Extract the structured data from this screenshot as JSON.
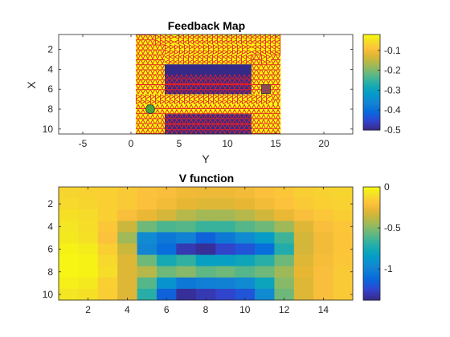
{
  "figure": {
    "background": "#ffffff"
  },
  "colormap": "parula",
  "chart_data": [
    {
      "type": "heatmap",
      "title": "Feedback Map",
      "xlabel": "Y",
      "ylabel": "X",
      "xlim": [
        -7.5,
        23
      ],
      "ylim": [
        0.5,
        10.5
      ],
      "y_reversed": true,
      "xticks": [
        -5,
        0,
        5,
        10,
        15,
        20
      ],
      "yticks": [
        2,
        4,
        6,
        8,
        10
      ],
      "grid_cols": 15,
      "grid_rows": 10,
      "values": [
        [
          0,
          0,
          0,
          0,
          0,
          0,
          0,
          0,
          0,
          0,
          0,
          0,
          0,
          0,
          0
        ],
        [
          0,
          0,
          0,
          0,
          0,
          0,
          0,
          0,
          0,
          0,
          0,
          0,
          0,
          0,
          0
        ],
        [
          0,
          0,
          0,
          0,
          0,
          0,
          0,
          0,
          0,
          0,
          0,
          0,
          0,
          0,
          0
        ],
        [
          0,
          0,
          0,
          -0.5,
          -0.5,
          -0.5,
          -0.5,
          -0.5,
          -0.5,
          -0.5,
          -0.5,
          -0.5,
          0,
          0,
          0
        ],
        [
          0,
          0,
          0,
          -0.5,
          -0.5,
          -0.5,
          -0.5,
          -0.5,
          -0.5,
          -0.5,
          -0.5,
          -0.5,
          0,
          0,
          0
        ],
        [
          0,
          0,
          0,
          -0.5,
          -0.5,
          -0.5,
          -0.5,
          -0.5,
          -0.5,
          -0.5,
          -0.5,
          -0.5,
          0,
          0,
          0
        ],
        [
          0,
          0,
          0,
          0,
          0,
          0,
          0,
          0,
          0,
          0,
          0,
          0,
          0,
          0,
          0
        ],
        [
          0,
          0,
          0,
          0,
          0,
          0,
          0,
          0,
          0,
          0,
          0,
          0,
          0,
          0,
          0
        ],
        [
          0,
          0,
          0,
          -0.5,
          -0.5,
          -0.5,
          -0.5,
          -0.5,
          -0.5,
          -0.5,
          -0.5,
          -0.5,
          0,
          0,
          0
        ],
        [
          0,
          0,
          0,
          -0.5,
          -0.5,
          -0.5,
          -0.5,
          -0.5,
          -0.5,
          -0.5,
          -0.5,
          -0.5,
          0,
          0,
          0
        ]
      ],
      "colorbar": {
        "limits": [
          -0.5,
          -0.02
        ],
        "ticks": [
          -0.1,
          -0.2,
          -0.3,
          -0.4,
          -0.5
        ],
        "tick_labels": [
          "-0.1",
          "-0.2",
          "-0.3",
          "-0.4",
          "-0.5"
        ]
      },
      "arrows": {
        "color": "#e0202a",
        "directions_by_row": [
          "DDRRLLLLLLLLLLL",
          "DDDRRRRRRRRRLLL",
          "DDDLLLLLLLLLDRD",
          "DDD.........DDD",
          "DDD.........DDD",
          "DDD.........DDD",
          "RRRRRRRRRRRRRRD",
          "UUUUUUUUUUUUUUU",
          "UUU.........UUU",
          "UUU.........UUU"
        ],
        "directions_by_row_interior": [
          "...............",
          "...............",
          "...............",
          "...............",
          "...UUUUUUUUU...",
          "...DDDDDDDDD...",
          "...............",
          "...............",
          "...UUUUUUUUU...",
          "...DDDDDDDDD..."
        ]
      },
      "markers": [
        {
          "kind": "start",
          "row": 8,
          "col": 2,
          "fill": "#4aa33a",
          "shape": "circle"
        },
        {
          "kind": "goal",
          "row": 6,
          "col": 14,
          "fill": "#8c4b56",
          "shape": "square"
        }
      ]
    },
    {
      "type": "heatmap",
      "title": "V function",
      "xlabel": "",
      "ylabel": "",
      "xlim": [
        0.5,
        15.5
      ],
      "ylim": [
        0.5,
        10.5
      ],
      "y_reversed": true,
      "xticks": [
        2,
        4,
        6,
        8,
        10,
        12,
        14
      ],
      "yticks": [
        2,
        4,
        6,
        8,
        10
      ],
      "grid_cols": 15,
      "grid_rows": 10,
      "values": [
        [
          -0.13,
          -0.14,
          -0.15,
          -0.17,
          -0.2,
          -0.22,
          -0.25,
          -0.26,
          -0.26,
          -0.24,
          -0.21,
          -0.18,
          -0.16,
          -0.14,
          -0.13
        ],
        [
          -0.12,
          -0.13,
          -0.15,
          -0.17,
          -0.21,
          -0.24,
          -0.28,
          -0.3,
          -0.3,
          -0.28,
          -0.24,
          -0.2,
          -0.17,
          -0.15,
          -0.14
        ],
        [
          -0.09,
          -0.11,
          -0.15,
          -0.22,
          -0.27,
          -0.33,
          -0.4,
          -0.44,
          -0.44,
          -0.4,
          -0.34,
          -0.27,
          -0.22,
          -0.18,
          -0.16
        ],
        [
          -0.07,
          -0.1,
          -0.18,
          -0.35,
          -0.55,
          -0.62,
          -0.6,
          -0.66,
          -0.66,
          -0.6,
          -0.55,
          -0.45,
          -0.3,
          -0.22,
          -0.18
        ],
        [
          -0.06,
          -0.09,
          -0.2,
          -0.45,
          -0.95,
          -1.05,
          -1.0,
          -1.15,
          -1.05,
          -0.95,
          -0.85,
          -0.65,
          -0.33,
          -0.24,
          -0.19
        ],
        [
          -0.03,
          -0.05,
          -0.15,
          -0.35,
          -0.98,
          -1.1,
          -1.3,
          -1.35,
          -1.25,
          -1.2,
          -1.1,
          -0.72,
          -0.33,
          -0.24,
          -0.19
        ],
        [
          -0.02,
          -0.03,
          -0.12,
          -0.3,
          -0.55,
          -0.75,
          -0.68,
          -0.82,
          -0.82,
          -0.78,
          -0.7,
          -0.55,
          -0.3,
          -0.23,
          -0.18
        ],
        [
          -0.02,
          -0.03,
          -0.1,
          -0.3,
          -0.4,
          -0.55,
          -0.5,
          -0.58,
          -0.55,
          -0.6,
          -0.55,
          -0.45,
          -0.28,
          -0.22,
          -0.17
        ],
        [
          -0.04,
          -0.06,
          -0.15,
          -0.3,
          -0.6,
          -0.9,
          -1.05,
          -1.02,
          -1.0,
          -0.95,
          -0.8,
          -0.5,
          -0.3,
          -0.22,
          -0.17
        ],
        [
          -0.07,
          -0.09,
          -0.16,
          -0.3,
          -0.7,
          -1.15,
          -1.35,
          -1.3,
          -1.25,
          -1.2,
          -0.95,
          -0.55,
          -0.3,
          -0.22,
          -0.17
        ]
      ],
      "colorbar": {
        "limits": [
          -1.38,
          0
        ],
        "ticks": [
          0,
          -0.5,
          -1
        ],
        "tick_labels": [
          "0",
          "-0.5",
          "-1"
        ]
      }
    }
  ]
}
